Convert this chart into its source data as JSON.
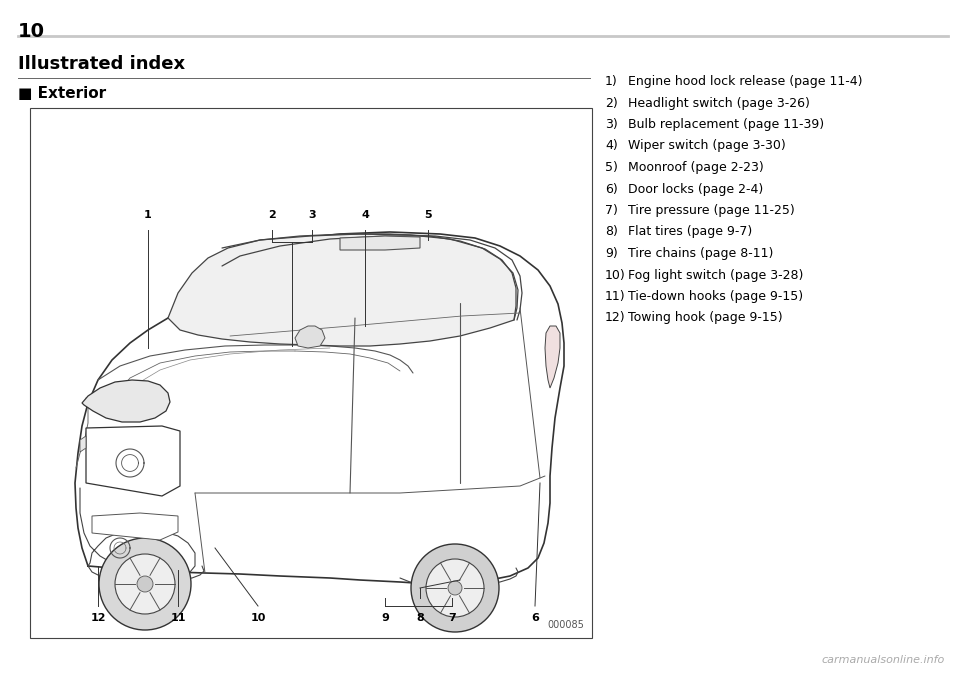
{
  "page_number": "10",
  "title": "Illustrated index",
  "section": "■ Exterior",
  "image_code": "000085",
  "bg_color": "#ffffff",
  "items_num": [
    "1)",
    "2)",
    "3)",
    "4)",
    "5)",
    "6)",
    "7)",
    "8)",
    "9)",
    "10)",
    "11)",
    "12)"
  ],
  "items_text": [
    "Engine hood lock release (page 11-4)",
    "Headlight switch (page 3-26)",
    "Bulb replacement (page 11-39)",
    "Wiper switch (page 3-30)",
    "Moonroof (page 2-23)",
    "Door locks (page 2-4)",
    "Tire pressure (page 11-25)",
    "Flat tires (page 9-7)",
    "Tire chains (page 8-11)",
    "Fog light switch (page 3-28)",
    "Tie-down hooks (page 9-15)",
    "Towing hook (page 9-15)"
  ],
  "watermark": "carmanualsonline.info",
  "top_line_color": "#c8c8c8",
  "title_line_color": "#666666",
  "box_line_color": "#444444",
  "car_line_color": "#333333",
  "page_num_fontsize": 14,
  "title_fontsize": 13,
  "section_fontsize": 11,
  "item_fontsize": 9,
  "watermark_fontsize": 8
}
